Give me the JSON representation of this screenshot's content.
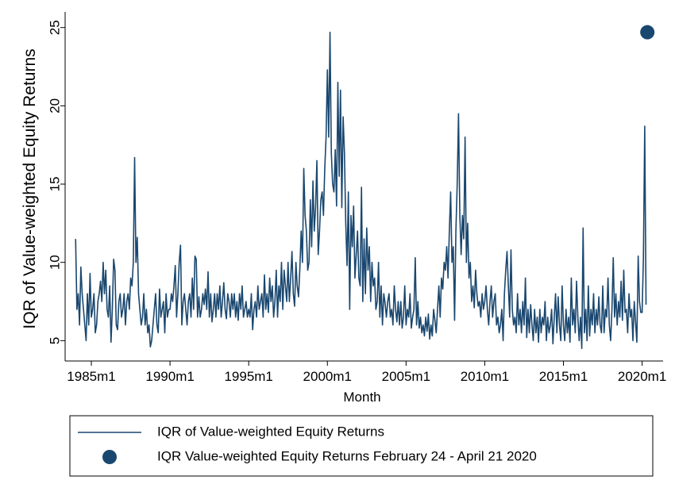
{
  "chart_data": {
    "type": "line",
    "ylabel": "IQR of Value-weighted Equity Returns",
    "xlabel": "Month",
    "ylim": [
      3.7,
      26
    ],
    "yticks": [
      5,
      10,
      15,
      20,
      25
    ],
    "xlim": [
      "1983m5",
      "2021m5"
    ],
    "xticks": [
      "1985m1",
      "1990m1",
      "1995m1",
      "2000m1",
      "2005m1",
      "2010m1",
      "2015m1",
      "2020m1"
    ],
    "grid": false,
    "legend": "bottom",
    "series": [
      {
        "name": "IQR of Value-weighted Equity Returns",
        "color": "#1a476f",
        "start": "1984m1",
        "values": [
          11.5,
          7,
          8,
          6,
          9.7,
          8,
          7,
          6,
          5,
          8,
          6,
          9.3,
          6.5,
          7,
          8,
          5.5,
          6,
          7.5,
          8,
          8.8,
          7.5,
          10,
          8,
          9.5,
          7,
          6.5,
          8.5,
          4.9,
          7,
          10.2,
          9.5,
          6,
          5.7,
          7.5,
          8,
          6.5,
          7,
          8,
          6,
          7.5,
          8,
          7,
          9,
          8.5,
          10,
          16.7,
          10,
          11.6,
          8,
          7,
          6,
          6.5,
          8,
          6,
          7,
          5.5,
          6,
          4.6,
          5,
          6,
          7,
          8,
          6,
          5.5,
          8.3,
          6.5,
          7,
          7.5,
          5.5,
          8,
          6.5,
          7,
          7,
          8,
          7.5,
          8.5,
          9.8,
          6.5,
          8,
          10,
          11.1,
          6,
          7.5,
          8,
          7,
          6,
          7.5,
          8,
          6.5,
          9,
          7,
          10.4,
          10.2,
          6.5,
          7.8,
          6.5,
          7,
          8,
          7.3,
          8.3,
          7,
          9.4,
          6.5,
          8,
          6.2,
          7,
          8,
          6.5,
          8,
          7,
          8.5,
          6.5,
          7.5,
          8.7,
          7,
          6.4,
          8,
          7.5,
          6.5,
          8,
          7,
          8,
          6.5,
          7.5,
          6.3,
          8,
          7,
          8.5,
          6.5,
          7,
          7.5,
          6.5,
          7,
          6.5,
          8,
          5.7,
          7,
          7.5,
          6.5,
          8.5,
          7,
          7.5,
          8,
          6.5,
          9.2,
          7,
          8,
          6.8,
          9,
          7.5,
          8.5,
          6.5,
          7.5,
          9.5,
          6.5,
          8.5,
          7.5,
          10,
          7,
          9.5,
          8.5,
          7.5,
          10,
          7.5,
          9,
          10.7,
          8,
          7.2,
          10,
          8.5,
          7.8,
          9.6,
          12,
          10,
          16,
          13,
          12,
          9.5,
          10,
          14,
          11,
          15.2,
          12,
          13.5,
          16.5,
          10.5,
          12,
          14,
          14.5,
          13,
          16,
          18,
          22.3,
          18,
          24.7,
          17,
          15,
          14.5,
          17.2,
          13.6,
          21.5,
          15.5,
          21,
          13.5,
          19.3,
          17,
          12.5,
          9.8,
          14.5,
          7,
          13,
          11,
          13.6,
          9,
          10.5,
          12,
          9,
          8.5,
          14.8,
          7.5,
          11.5,
          8,
          12.2,
          9.5,
          11,
          7.5,
          10,
          8.5,
          9,
          7,
          7.5,
          10,
          6.5,
          8.5,
          6,
          8,
          7.4,
          6.5,
          7.5,
          8,
          6.5,
          7,
          6,
          8.5,
          7,
          6.2,
          7.5,
          6,
          7.5,
          5.8,
          6.5,
          8.5,
          6,
          7,
          6.5,
          8,
          5.8,
          6.5,
          7,
          10.3,
          6,
          7.5,
          5.8,
          6.5,
          5.5,
          6,
          5.3,
          6.5,
          5.6,
          6.7,
          5.1,
          6,
          5.3,
          7,
          6.3,
          5.5,
          7,
          8.5,
          6.5,
          9,
          8.3,
          10,
          9.5,
          11,
          9,
          12,
          14.5,
          10,
          11,
          6.3,
          12,
          15,
          19.5,
          13,
          10.5,
          13,
          11.5,
          18,
          10,
          12.5,
          9,
          10,
          7.5,
          8.5,
          7.1,
          9.5,
          8,
          7.2,
          7.5,
          6.5,
          8,
          7,
          7.5,
          8.5,
          7,
          6,
          7.5,
          8.5,
          6.5,
          7.5,
          8,
          6,
          6.5,
          5.5,
          6,
          7,
          5,
          8,
          9.5,
          10.7,
          8.5,
          6.5,
          10.8,
          7,
          6,
          6.5,
          5.5,
          8,
          6,
          7,
          5.5,
          7.5,
          6,
          9,
          5.2,
          7,
          5.5,
          7.3,
          6,
          5,
          7,
          5.5,
          6.5,
          4.9,
          7,
          5.5,
          6.5,
          6,
          7.5,
          5,
          6.5,
          5.5,
          6,
          7,
          4.8,
          6.5,
          8,
          5.5,
          7.8,
          6,
          5,
          8.5,
          6,
          5,
          7,
          5.5,
          6.5,
          4.9,
          9,
          6,
          7,
          5.5,
          8.8,
          6.5,
          5,
          6.5,
          4.5,
          12.2,
          5.5,
          7,
          5,
          8.5,
          5.3,
          7,
          6,
          8,
          5.5,
          7,
          6,
          7.8,
          6,
          5.5,
          8.5,
          5.5,
          7,
          6.5,
          9,
          6,
          5,
          7,
          10.3,
          6.5,
          8,
          6,
          7.5,
          6.5,
          8.8,
          6.3,
          9.5,
          6.8,
          7,
          5.5,
          8,
          6.5,
          7,
          5,
          7.5,
          6.2,
          4.9,
          10.4,
          7.5,
          6.8,
          6.8,
          10.3,
          18.7,
          7.3
        ]
      },
      {
        "name": "IQR Value-weighted Equity Returns February 24 - April 21 2020",
        "color": "#1a476f",
        "type": "scatter",
        "start": "2020m5",
        "values": [
          24.7
        ]
      }
    ]
  }
}
